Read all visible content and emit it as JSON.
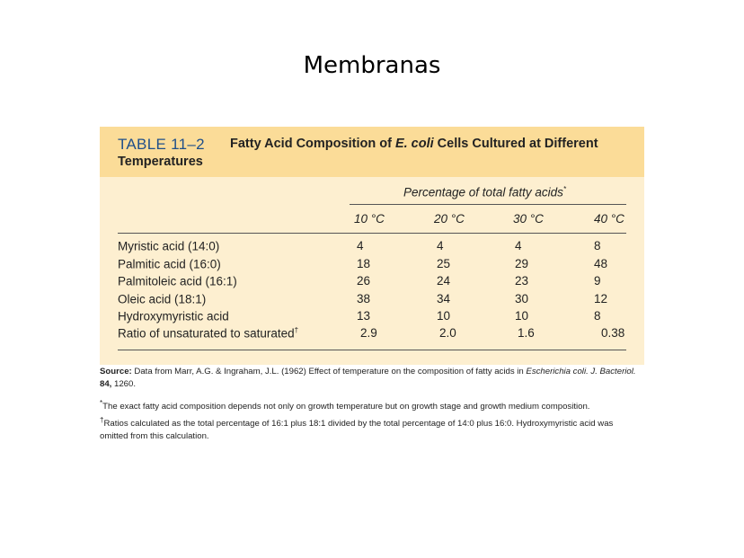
{
  "slide_title": "Membranas",
  "table": {
    "number": "TABLE 11–2",
    "caption_line1_pre": "Fatty Acid Composition of ",
    "caption_species": "E. coli",
    "caption_line1_post": " Cells Cultured at Different",
    "caption_line2": "Temperatures",
    "spanner": "Percentage of total fatty acids",
    "spanner_mark": "*",
    "columns": [
      "10 °C",
      "20 °C",
      "30 °C",
      "40 °C"
    ],
    "rows": [
      {
        "label": "Myristic acid (14:0)",
        "mark": "",
        "values": [
          "4",
          "4",
          "4",
          "8"
        ]
      },
      {
        "label": "Palmitic acid (16:0)",
        "mark": "",
        "values": [
          "18",
          "25",
          "29",
          "48"
        ]
      },
      {
        "label": "Palmitoleic acid (16:1)",
        "mark": "",
        "values": [
          "26",
          "24",
          "23",
          "9"
        ]
      },
      {
        "label": "Oleic acid (18:1)",
        "mark": "",
        "values": [
          "38",
          "34",
          "30",
          "12"
        ]
      },
      {
        "label": "Hydroxymyristic acid",
        "mark": "",
        "values": [
          "13",
          "10",
          "10",
          "8"
        ]
      },
      {
        "label": "Ratio of unsaturated to saturated",
        "mark": "†",
        "values": [
          "2.9",
          "2.0",
          "1.6",
          "0.38"
        ]
      }
    ]
  },
  "notes": {
    "source_label": "Source:",
    "source_text": " Data from Marr, A.G. & Ingraham, J.L. (1962) Effect of temperature on the composition of fatty acids in ",
    "source_journal": "Escherichia coli. J. Bacteriol.",
    "source_vol": "84,",
    "source_pages": " 1260.",
    "note1_mark": "*",
    "note1": "The exact fatty acid composition depends not only on growth temperature but on growth stage and growth medium composition.",
    "note2_mark": "†",
    "note2_line1": "Ratios calculated as the total percentage of 16:1 plus 18:1 divided by the total percentage of 14:0 plus 16:0. Hydroxymyristic acid was",
    "note2_line2": "omitted from this calculation."
  }
}
